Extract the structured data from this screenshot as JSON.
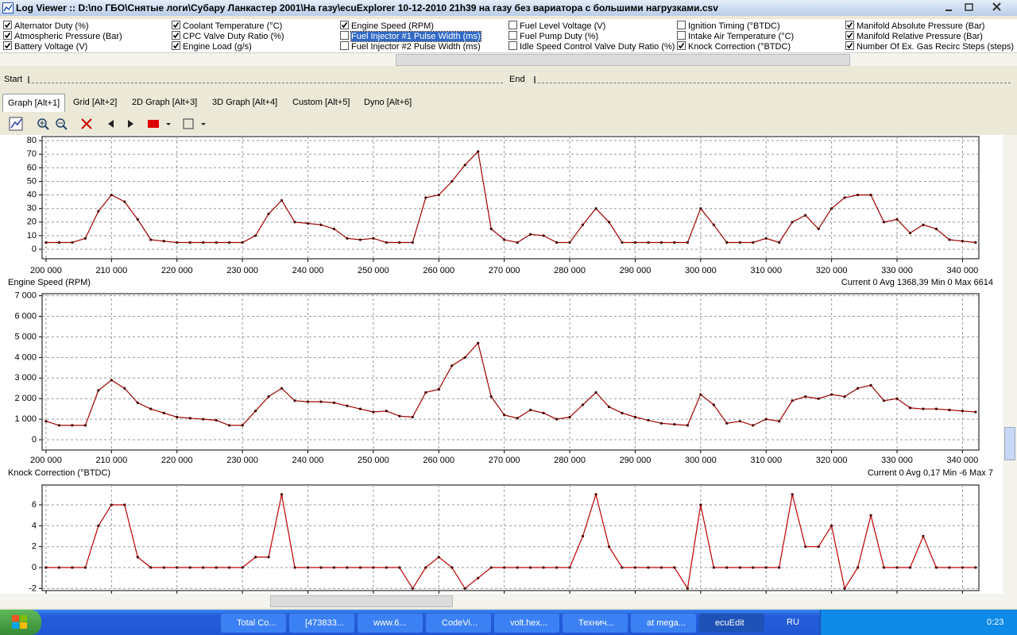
{
  "window": {
    "title": "Log Viewer :: D:\\по ГБО\\Снятые логи\\Субару Ланкастер 2001\\На газу\\ecuExplorer  10-12-2010 21h39 на газу без вариатора с большими нагрузками.csv"
  },
  "channels": [
    {
      "label": "Alternator Duty (%)",
      "checked": true
    },
    {
      "label": "Atmospheric Pressure (Bar)",
      "checked": true
    },
    {
      "label": "Battery Voltage (V)",
      "checked": true
    },
    {
      "label": "Coolant Temperature (°C)",
      "checked": true
    },
    {
      "label": "CPC Valve Duty Ratio (%)",
      "checked": true
    },
    {
      "label": "Engine Load (g/s)",
      "checked": true
    },
    {
      "label": "Engine Speed (RPM)",
      "checked": true
    },
    {
      "label": "Fuel Injector #1 Pulse Width (ms)",
      "checked": false,
      "selected": true
    },
    {
      "label": "Fuel Injector #2 Pulse Width (ms)",
      "checked": false
    },
    {
      "label": "Fuel Level Voltage (V)",
      "checked": false
    },
    {
      "label": "Fuel Pump Duty (%)",
      "checked": false
    },
    {
      "label": "Idle Speed Control Valve Duty Ratio (%)",
      "checked": false
    },
    {
      "label": "Ignition Timing (°BTDC)",
      "checked": false
    },
    {
      "label": "Intake Air Temperature (°C)",
      "checked": false
    },
    {
      "label": "Knock Correction (°BTDC)",
      "checked": true
    },
    {
      "label": "Manifold Absolute Pressure (Bar)",
      "checked": true
    },
    {
      "label": "Manifold Relative Pressure (Bar)",
      "checked": true
    },
    {
      "label": "Number Of Ex. Gas Recirc Steps (steps)",
      "checked": true
    }
  ],
  "range": {
    "start": "Start",
    "end": "End"
  },
  "tabs": [
    {
      "label": "Graph [Alt+1]",
      "active": true
    },
    {
      "label": "Grid [Alt+2]"
    },
    {
      "label": "2D Graph [Alt+3]"
    },
    {
      "label": "3D Graph [Alt+4]"
    },
    {
      "label": "Custom [Alt+5]"
    },
    {
      "label": "Dyno [Alt+6]"
    }
  ],
  "chart_data": [
    {
      "type": "line",
      "color": "#a00000",
      "x": [
        200000,
        202000,
        204000,
        206000,
        208000,
        210000,
        212000,
        214000,
        216000,
        218000,
        220000,
        222000,
        224000,
        226000,
        228000,
        230000,
        232000,
        234000,
        236000,
        238000,
        240000,
        242000,
        244000,
        246000,
        248000,
        250000,
        252000,
        254000,
        256000,
        258000,
        260000,
        262000,
        264000,
        266000,
        268000,
        270000,
        272000,
        274000,
        276000,
        278000,
        280000,
        282000,
        284000,
        286000,
        288000,
        290000,
        292000,
        294000,
        296000,
        298000,
        300000,
        302000,
        304000,
        306000,
        308000,
        310000,
        312000,
        314000,
        316000,
        318000,
        320000,
        322000,
        324000,
        326000,
        328000,
        330000,
        332000,
        334000,
        336000,
        338000,
        340000,
        342000
      ],
      "values": [
        5,
        5,
        5,
        8,
        28,
        40,
        35,
        22,
        7,
        6,
        5,
        5,
        5,
        5,
        5,
        5,
        10,
        26,
        36,
        20,
        19,
        18,
        15,
        8,
        7,
        8,
        5,
        5,
        5,
        38,
        40,
        50,
        62,
        72,
        15,
        7,
        5,
        11,
        10,
        5,
        5,
        18,
        30,
        20,
        5,
        5,
        5,
        5,
        5,
        5,
        30,
        18,
        5,
        5,
        5,
        8,
        5,
        20,
        25,
        15,
        30,
        38,
        40,
        40,
        20,
        22,
        12,
        18,
        15,
        7,
        6,
        5
      ],
      "xlim": [
        199400,
        342500
      ],
      "ylim": [
        -7,
        83
      ],
      "xticks": [
        {
          "value": 200000,
          "label": "200 000"
        },
        {
          "value": 210000,
          "label": "210 000"
        },
        {
          "value": 220000,
          "label": "220 000"
        },
        {
          "value": 230000,
          "label": "230 000"
        },
        {
          "value": 240000,
          "label": "240 000"
        },
        {
          "value": 250000,
          "label": "250 000"
        },
        {
          "value": 260000,
          "label": "260 000"
        },
        {
          "value": 270000,
          "label": "270 000"
        },
        {
          "value": 280000,
          "label": "280 000"
        },
        {
          "value": 290000,
          "label": "290 000"
        },
        {
          "value": 300000,
          "label": "300 000"
        },
        {
          "value": 310000,
          "label": "310 000"
        },
        {
          "value": 320000,
          "label": "320 000"
        },
        {
          "value": 330000,
          "label": "330 000"
        },
        {
          "value": 340000,
          "label": "340 000"
        }
      ],
      "yticks": [
        0,
        10,
        20,
        30,
        40,
        50,
        60,
        70,
        80
      ],
      "grid": true
    },
    {
      "type": "line",
      "title": "Engine Speed (RPM)",
      "stats": "Current 0 Avg 1368,39 Min 0 Max 6614",
      "color": "#a00000",
      "x": [
        200000,
        202000,
        204000,
        206000,
        208000,
        210000,
        212000,
        214000,
        216000,
        218000,
        220000,
        222000,
        224000,
        226000,
        228000,
        230000,
        232000,
        234000,
        236000,
        238000,
        240000,
        242000,
        244000,
        246000,
        248000,
        250000,
        252000,
        254000,
        256000,
        258000,
        260000,
        262000,
        264000,
        266000,
        268000,
        270000,
        272000,
        274000,
        276000,
        278000,
        280000,
        282000,
        284000,
        286000,
        288000,
        290000,
        292000,
        294000,
        296000,
        298000,
        300000,
        302000,
        304000,
        306000,
        308000,
        310000,
        312000,
        314000,
        316000,
        318000,
        320000,
        322000,
        324000,
        326000,
        328000,
        330000,
        332000,
        334000,
        336000,
        338000,
        340000,
        342000
      ],
      "values": [
        900,
        700,
        700,
        700,
        2400,
        2900,
        2500,
        1800,
        1500,
        1300,
        1100,
        1050,
        1000,
        950,
        700,
        700,
        1400,
        2100,
        2500,
        1900,
        1850,
        1850,
        1800,
        1650,
        1500,
        1350,
        1400,
        1150,
        1100,
        2300,
        2450,
        3600,
        4000,
        4700,
        2100,
        1200,
        1050,
        1450,
        1300,
        1000,
        1100,
        1700,
        2300,
        1600,
        1300,
        1100,
        950,
        800,
        750,
        700,
        2200,
        1700,
        800,
        900,
        700,
        1000,
        900,
        1900,
        2100,
        2000,
        2200,
        2100,
        2500,
        2650,
        1900,
        2000,
        1550,
        1500,
        1500,
        1450,
        1400,
        1350
      ],
      "xlim": [
        199400,
        342500
      ],
      "ylim": [
        -500,
        7100
      ],
      "xticks": [
        {
          "value": 200000,
          "label": "200 000"
        },
        {
          "value": 210000,
          "label": "210 000"
        },
        {
          "value": 220000,
          "label": "220 000"
        },
        {
          "value": 230000,
          "label": "230 000"
        },
        {
          "value": 240000,
          "label": "240 000"
        },
        {
          "value": 250000,
          "label": "250 000"
        },
        {
          "value": 260000,
          "label": "260 000"
        },
        {
          "value": 270000,
          "label": "270 000"
        },
        {
          "value": 280000,
          "label": "280 000"
        },
        {
          "value": 290000,
          "label": "290 000"
        },
        {
          "value": 300000,
          "label": "300 000"
        },
        {
          "value": 310000,
          "label": "310 000"
        },
        {
          "value": 320000,
          "label": "320 000"
        },
        {
          "value": 330000,
          "label": "330 000"
        },
        {
          "value": 340000,
          "label": "340 000"
        }
      ],
      "yticks": [
        0,
        {
          "value": 1000,
          "label": "1 000"
        },
        {
          "value": 2000,
          "label": "2 000"
        },
        {
          "value": 3000,
          "label": "3 000"
        },
        {
          "value": 4000,
          "label": "4 000"
        },
        {
          "value": 5000,
          "label": "5 000"
        },
        {
          "value": 6000,
          "label": "6 000"
        },
        {
          "value": 7000,
          "label": "7 000"
        }
      ],
      "grid": true
    },
    {
      "type": "line",
      "title": "Knock Correction (°BTDC)",
      "stats": "Current 0 Avg 0,17 Min -6 Max 7",
      "color": "#c00000",
      "x": [
        200000,
        202000,
        204000,
        206000,
        208000,
        210000,
        212000,
        214000,
        216000,
        218000,
        220000,
        222000,
        224000,
        226000,
        228000,
        230000,
        232000,
        234000,
        236000,
        238000,
        240000,
        242000,
        244000,
        246000,
        248000,
        250000,
        252000,
        254000,
        256000,
        258000,
        260000,
        262000,
        264000,
        266000,
        268000,
        270000,
        272000,
        274000,
        276000,
        278000,
        280000,
        282000,
        284000,
        286000,
        288000,
        290000,
        292000,
        294000,
        296000,
        298000,
        300000,
        302000,
        304000,
        306000,
        308000,
        310000,
        312000,
        314000,
        316000,
        318000,
        320000,
        322000,
        324000,
        326000,
        328000,
        330000,
        332000,
        334000,
        336000,
        338000,
        340000,
        342000
      ],
      "values": [
        0,
        0,
        0,
        0,
        4,
        6,
        6,
        1,
        0,
        0,
        0,
        0,
        0,
        0,
        0,
        0,
        1,
        1,
        7,
        0,
        0,
        0,
        0,
        0,
        0,
        0,
        0,
        0,
        -2,
        0,
        1,
        0,
        -2,
        -1,
        0,
        0,
        0,
        0,
        0,
        0,
        0,
        3,
        7,
        2,
        0,
        0,
        0,
        0,
        0,
        -2,
        6,
        0,
        0,
        0,
        0,
        0,
        0,
        7,
        2,
        2,
        4,
        -2,
        0,
        5,
        0,
        0,
        0,
        3,
        0,
        0,
        0,
        0
      ],
      "xlim": [
        199400,
        342500
      ],
      "ylim": [
        -2.2,
        7.9
      ],
      "xticks": [
        200000,
        210000,
        220000,
        230000,
        240000,
        250000,
        260000,
        270000,
        280000,
        290000,
        300000,
        310000,
        320000,
        330000,
        340000
      ],
      "yticks": [
        -2,
        0,
        2,
        4,
        6
      ],
      "grid": true
    }
  ],
  "taskbar": {
    "tasks": [
      {
        "label": "Total Co..."
      },
      {
        "label": "[473833..."
      },
      {
        "label": "www.6..."
      },
      {
        "label": "CodeVi..."
      },
      {
        "label": "volt.hex..."
      },
      {
        "label": "Технич..."
      },
      {
        "label": "at mega..."
      },
      {
        "label": "ecuEdit",
        "active": true
      }
    ],
    "language": "RU",
    "clock": "0:23"
  }
}
